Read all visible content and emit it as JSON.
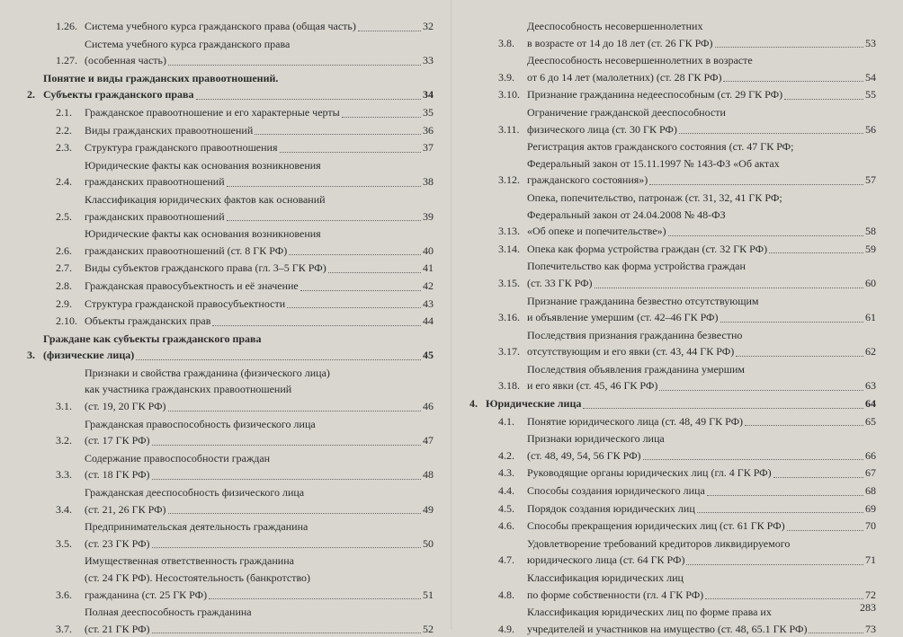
{
  "page_number": "283",
  "left": [
    {
      "kind": "sub",
      "num": "1.26.",
      "lines": [
        "Система учебного курса гражданского права (общая часть)"
      ],
      "page": "32"
    },
    {
      "kind": "sub",
      "num": "1.27.",
      "lines": [
        "Система учебного курса гражданского права",
        "(особенная часть)"
      ],
      "page": "33"
    },
    {
      "kind": "chap",
      "num": "2.",
      "lines": [
        "Понятие и виды гражданских правоотношений.",
        "Субъекты гражданского права"
      ],
      "page": "34",
      "bold": true
    },
    {
      "kind": "sub",
      "num": "2.1.",
      "lines": [
        "Гражданское правоотношение и его характерные черты"
      ],
      "page": "35"
    },
    {
      "kind": "sub",
      "num": "2.2.",
      "lines": [
        "Виды гражданских правоотношений"
      ],
      "page": "36"
    },
    {
      "kind": "sub",
      "num": "2.3.",
      "lines": [
        "Структура гражданского правоотношения"
      ],
      "page": "37"
    },
    {
      "kind": "sub",
      "num": "2.4.",
      "lines": [
        "Юридические факты как основания возникновения",
        "гражданских правоотношений"
      ],
      "page": "38"
    },
    {
      "kind": "sub",
      "num": "2.5.",
      "lines": [
        "Классификация юридических фактов как оснований",
        "гражданских правоотношений"
      ],
      "page": "39"
    },
    {
      "kind": "sub",
      "num": "2.6.",
      "lines": [
        "Юридические факты как основания возникновения",
        "гражданских правоотношений (ст. 8 ГК РФ)"
      ],
      "page": "40"
    },
    {
      "kind": "sub",
      "num": "2.7.",
      "lines": [
        "Виды субъектов гражданского права (гл. 3–5 ГК РФ)"
      ],
      "page": "41"
    },
    {
      "kind": "sub",
      "num": "2.8.",
      "lines": [
        "Гражданская правосубъектность и её значение"
      ],
      "page": "42"
    },
    {
      "kind": "sub",
      "num": "2.9.",
      "lines": [
        "Структура гражданской правосубъектности"
      ],
      "page": "43"
    },
    {
      "kind": "sub",
      "num": "2.10.",
      "lines": [
        "Объекты гражданских прав"
      ],
      "page": "44"
    },
    {
      "kind": "chap",
      "num": "3.",
      "lines": [
        "Граждане как субъекты гражданского права",
        "(физические лица)"
      ],
      "page": "45",
      "bold": true
    },
    {
      "kind": "sub",
      "num": "3.1.",
      "lines": [
        "Признаки и свойства гражданина (физического лица)",
        "как участника гражданских правоотношений",
        "(ст. 19, 20 ГК РФ)"
      ],
      "page": "46"
    },
    {
      "kind": "sub",
      "num": "3.2.",
      "lines": [
        "Гражданская правоспособность физического лица",
        "(ст. 17 ГК РФ)"
      ],
      "page": "47"
    },
    {
      "kind": "sub",
      "num": "3.3.",
      "lines": [
        "Содержание правоспособности граждан",
        "(ст. 18 ГК РФ)"
      ],
      "page": "48"
    },
    {
      "kind": "sub",
      "num": "3.4.",
      "lines": [
        "Гражданская дееспособность физического лица",
        "(ст. 21, 26 ГК РФ)"
      ],
      "page": "49"
    },
    {
      "kind": "sub",
      "num": "3.5.",
      "lines": [
        "Предпринимательская деятельность гражданина",
        "(ст. 23 ГК РФ)"
      ],
      "page": "50"
    },
    {
      "kind": "sub",
      "num": "3.6.",
      "lines": [
        "Имущественная ответственность гражданина",
        "(ст. 24 ГК РФ). Несостоятельность (банкротство)",
        "гражданина (ст. 25 ГК РФ)"
      ],
      "page": "51"
    },
    {
      "kind": "sub",
      "num": "3.7.",
      "lines": [
        "Полная дееспособность гражданина",
        "(ст. 21 ГК РФ)"
      ],
      "page": "52"
    }
  ],
  "right": [
    {
      "kind": "sub",
      "num": "3.8.",
      "lines": [
        "Дееспособность несовершеннолетних",
        "в возрасте от 14 до 18 лет (ст. 26 ГК РФ)"
      ],
      "page": "53"
    },
    {
      "kind": "sub",
      "num": "3.9.",
      "lines": [
        "Дееспособность несовершеннолетних в возрасте",
        "от 6 до 14 лет (малолетних) (ст. 28 ГК РФ)"
      ],
      "page": "54"
    },
    {
      "kind": "sub",
      "num": "3.10.",
      "lines": [
        "Признание гражданина недееспособным (ст. 29 ГК РФ)"
      ],
      "page": "55"
    },
    {
      "kind": "sub",
      "num": "3.11.",
      "lines": [
        "Ограничение гражданской дееспособности",
        "физического лица (ст. 30 ГК РФ)"
      ],
      "page": "56"
    },
    {
      "kind": "sub",
      "num": "3.12.",
      "lines": [
        "Регистрация актов гражданского состояния (ст. 47 ГК РФ;",
        "Федеральный закон от 15.11.1997 № 143-ФЗ «Об актах",
        "гражданского состояния»)"
      ],
      "page": "57"
    },
    {
      "kind": "sub",
      "num": "3.13.",
      "lines": [
        "Опека, попечительство, патронаж (ст. 31, 32, 41 ГК РФ;",
        "Федеральный закон от 24.04.2008 № 48-ФЗ",
        "«Об опеке и попечительстве»)"
      ],
      "page": "58"
    },
    {
      "kind": "sub",
      "num": "3.14.",
      "lines": [
        "Опека как форма устройства граждан (ст. 32 ГК РФ)"
      ],
      "page": "59"
    },
    {
      "kind": "sub",
      "num": "3.15.",
      "lines": [
        "Попечительство как форма устройства граждан",
        "(ст. 33 ГК РФ)"
      ],
      "page": "60"
    },
    {
      "kind": "sub",
      "num": "3.16.",
      "lines": [
        "Признание гражданина безвестно отсутствующим",
        "и объявление умершим (ст. 42–46 ГК РФ)"
      ],
      "page": "61"
    },
    {
      "kind": "sub",
      "num": "3.17.",
      "lines": [
        "Последствия признания гражданина безвестно",
        "отсутствующим и его явки (ст. 43, 44 ГК РФ)"
      ],
      "page": "62"
    },
    {
      "kind": "sub",
      "num": "3.18.",
      "lines": [
        "Последствия объявления гражданина умершим",
        "и его явки (ст. 45, 46 ГК РФ)"
      ],
      "page": "63"
    },
    {
      "kind": "chap",
      "num": "4.",
      "lines": [
        "Юридические лица"
      ],
      "page": "64",
      "bold": true
    },
    {
      "kind": "sub",
      "num": "4.1.",
      "lines": [
        "Понятие юридического лица (ст. 48, 49 ГК РФ)"
      ],
      "page": "65"
    },
    {
      "kind": "sub",
      "num": "4.2.",
      "lines": [
        "Признаки юридического лица",
        "(ст. 48, 49, 54, 56 ГК РФ)"
      ],
      "page": "66"
    },
    {
      "kind": "sub",
      "num": "4.3.",
      "lines": [
        "Руководящие органы юридических лиц (гл. 4 ГК РФ)"
      ],
      "page": "67"
    },
    {
      "kind": "sub",
      "num": "4.4.",
      "lines": [
        "Способы создания юридического лица"
      ],
      "page": "68"
    },
    {
      "kind": "sub",
      "num": "4.5.",
      "lines": [
        "Порядок создания юридических лиц"
      ],
      "page": "69"
    },
    {
      "kind": "sub",
      "num": "4.6.",
      "lines": [
        "Способы прекращения юридических лиц (ст. 61 ГК РФ)"
      ],
      "page": "70"
    },
    {
      "kind": "sub",
      "num": "4.7.",
      "lines": [
        "Удовлетворение требований кредиторов ликвидируемого",
        "юридического лица (ст. 64 ГК РФ)"
      ],
      "page": "71"
    },
    {
      "kind": "sub",
      "num": "4.8.",
      "lines": [
        "Классификация юридических лиц",
        "по форме собственности (гл. 4 ГК РФ)"
      ],
      "page": "72"
    },
    {
      "kind": "sub",
      "num": "4.9.",
      "lines": [
        "Классификация юридических лиц по форме права их",
        "учредителей и участников на имущество (ст. 48, 65.1 ГК РФ)"
      ],
      "page": "73"
    }
  ]
}
